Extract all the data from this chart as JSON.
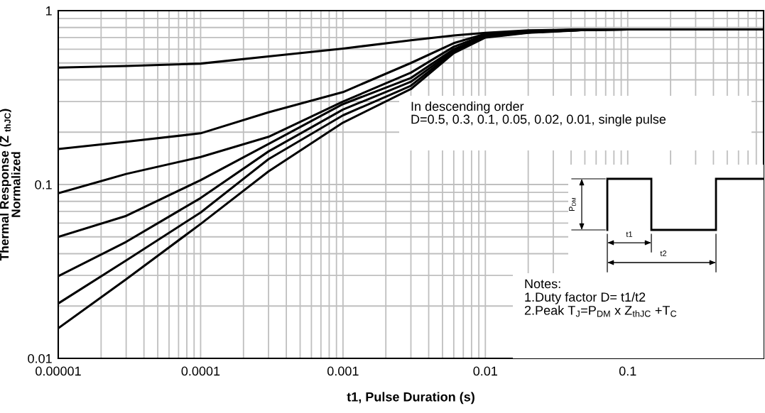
{
  "chart_data": {
    "type": "line",
    "xlabel": "t1, Pulse Duration (s)",
    "ylabel": "Thermal Response (Z $_{thJC}$)\nNormalized",
    "x": [
      1e-05,
      3e-05,
      0.0001,
      0.0003,
      0.001,
      0.003,
      0.006,
      0.01,
      0.02,
      0.05,
      0.1,
      0.9
    ],
    "series": [
      {
        "color": "#000000",
        "values": [
          0.47,
          0.48,
          0.496,
          0.545,
          0.605,
          0.676,
          0.72,
          0.746,
          0.77,
          0.78,
          0.78,
          0.78
        ]
      },
      {
        "color": "#000000",
        "values": [
          0.16,
          0.176,
          0.197,
          0.26,
          0.34,
          0.5,
          0.65,
          0.735,
          0.765,
          0.78,
          0.78,
          0.78
        ]
      },
      {
        "color": "#000000",
        "values": [
          0.089,
          0.115,
          0.144,
          0.188,
          0.3,
          0.44,
          0.62,
          0.725,
          0.76,
          0.78,
          0.78,
          0.78
        ]
      },
      {
        "color": "#000000",
        "values": [
          0.05,
          0.066,
          0.106,
          0.171,
          0.29,
          0.41,
          0.6,
          0.715,
          0.755,
          0.775,
          0.78,
          0.78
        ]
      },
      {
        "color": "#000000",
        "values": [
          0.0297,
          0.0468,
          0.0836,
          0.155,
          0.27,
          0.39,
          0.59,
          0.71,
          0.75,
          0.775,
          0.78,
          0.78
        ]
      },
      {
        "color": "#000000",
        "values": [
          0.0207,
          0.0366,
          0.069,
          0.14,
          0.25,
          0.37,
          0.58,
          0.705,
          0.75,
          0.775,
          0.78,
          0.78
        ]
      },
      {
        "color": "#000000",
        "values": [
          0.0149,
          0.0285,
          0.0593,
          0.119,
          0.227,
          0.354,
          0.57,
          0.7,
          0.745,
          0.775,
          0.78,
          0.78
        ]
      }
    ],
    "log": "xy",
    "xlim": [
      1e-05,
      0.9
    ],
    "ylim": [
      0.01,
      1
    ],
    "xticks": [
      {
        "value": 1e-05,
        "label": "0.00001"
      },
      0.0001,
      0.001,
      0.01,
      0.1
    ],
    "yticks": [
      0.01,
      0.1,
      1
    ],
    "grid": true,
    "line_style": "solid",
    "marker": "none",
    "annotations": [
      "In descending order\nD=0.5, 0.3, 0.1, 0.05, 0.02, 0.01, single pulse",
      "Notes:\n1.Duty factor D= t1/t2\n2.Peak T$_{J}$=P$_{DM}$ x Z$_{thJC}$ +T$_{C}$",
      "P$_{DM}$",
      "t1",
      "t2"
    ]
  }
}
